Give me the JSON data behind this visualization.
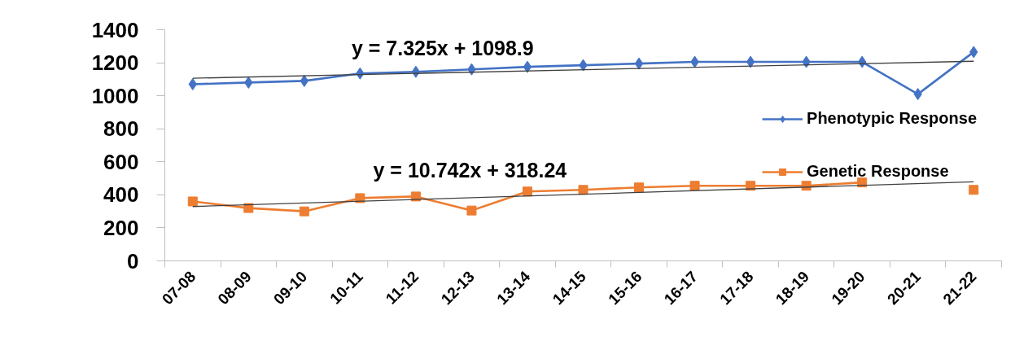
{
  "chart_data": {
    "type": "line",
    "categories": [
      "07-08",
      "08-09",
      "09-10",
      "10-11",
      "11-12",
      "12-13",
      "13-14",
      "14-15",
      "15-16",
      "16-17",
      "17-18",
      "18-19",
      "19-20",
      "20-21",
      "21-22"
    ],
    "series": [
      {
        "name": "Phenotypic Response",
        "color": "#4472c4",
        "marker": "diamond",
        "values": [
          1070,
          1080,
          1090,
          1135,
          1145,
          1160,
          1175,
          1185,
          1195,
          1205,
          1205,
          1205,
          1205,
          1010,
          1265
        ]
      },
      {
        "name": "Genetic Response",
        "color": "#ed7d31",
        "marker": "square",
        "values": [
          360,
          320,
          300,
          380,
          390,
          305,
          420,
          430,
          445,
          455,
          455,
          455,
          475,
          null,
          430
        ]
      },
      {
        "type": "line",
        "color": "#404040",
        "marker": "none",
        "x": [
          "07-08",
          "21-22"
        ],
        "values": [
          1106,
          1209
        ]
      },
      {
        "type": "line",
        "color": "#404040",
        "marker": "none",
        "x": [
          "07-08",
          "21-22"
        ],
        "values": [
          329,
          479
        ]
      }
    ],
    "ylim": [
      0,
      1400
    ],
    "yticks": [
      0,
      200,
      400,
      600,
      800,
      1000,
      1200,
      1400
    ],
    "grid": false,
    "legend": "right",
    "annotations": [
      "y = 7.325x + 1098.9",
      "y = 10.742x + 318.24"
    ]
  }
}
